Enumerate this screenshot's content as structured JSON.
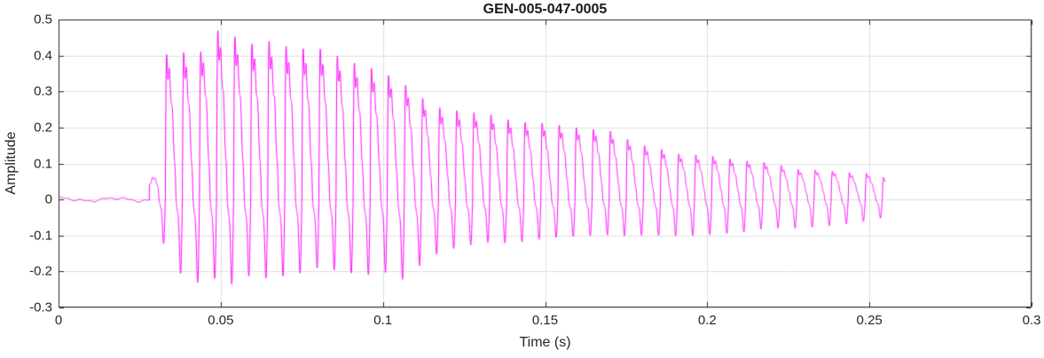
{
  "chart_data": {
    "type": "line",
    "title": "GEN-005-047-0005",
    "xlabel": "Time (s)",
    "ylabel": "Amplitude",
    "xlim": [
      0,
      0.3
    ],
    "ylim": [
      -0.3,
      0.5
    ],
    "xticks": [
      0,
      0.05,
      0.1,
      0.15,
      0.2,
      0.25,
      0.3
    ],
    "xtick_labels": [
      "0",
      "0.05",
      "0.1",
      "0.15",
      "0.2",
      "0.25",
      "0.3"
    ],
    "yticks": [
      -0.3,
      -0.2,
      -0.1,
      0,
      0.1,
      0.2,
      0.3,
      0.4,
      0.5
    ],
    "ytick_labels": [
      "-0.3",
      "-0.2",
      "-0.1",
      "0",
      "0.1",
      "0.2",
      "0.3",
      "0.4",
      "0.5"
    ],
    "grid": true,
    "colors": {
      "line": "#ff00ff",
      "axis": "#262626",
      "grid": "#e0e0e0",
      "background": "#ffffff",
      "title_text": "#1a1a1a",
      "tick_text": "#262626"
    },
    "signal": {
      "description": "Decaying oscillatory burst (pluck/percussive waveform): flat near zero until onset, sharp spiky oscillation peaking near 0.47 around t=0.05 s, decaying to ~0.07 by t=0.255 s where the trace ends",
      "onset_time": 0.028,
      "end_time": 0.255,
      "carrier_freq_hz": 190,
      "pre_onset_noise_amp": 0.008,
      "envelope": [
        [
          0.0,
          0.008,
          -0.008
        ],
        [
          0.027,
          0.012,
          -0.012
        ],
        [
          0.03,
          0.1,
          -0.06
        ],
        [
          0.033,
          0.4,
          -0.14
        ],
        [
          0.038,
          0.41,
          -0.21
        ],
        [
          0.043,
          0.4,
          -0.23
        ],
        [
          0.048,
          0.47,
          -0.22
        ],
        [
          0.053,
          0.46,
          -0.24
        ],
        [
          0.058,
          0.43,
          -0.21
        ],
        [
          0.065,
          0.44,
          -0.22
        ],
        [
          0.072,
          0.42,
          -0.21
        ],
        [
          0.08,
          0.42,
          -0.19
        ],
        [
          0.088,
          0.39,
          -0.2
        ],
        [
          0.095,
          0.37,
          -0.21
        ],
        [
          0.1,
          0.35,
          -0.2
        ],
        [
          0.105,
          0.33,
          -0.23
        ],
        [
          0.11,
          0.3,
          -0.19
        ],
        [
          0.115,
          0.26,
          -0.16
        ],
        [
          0.12,
          0.25,
          -0.14
        ],
        [
          0.13,
          0.24,
          -0.12
        ],
        [
          0.14,
          0.22,
          -0.12
        ],
        [
          0.15,
          0.21,
          -0.11
        ],
        [
          0.16,
          0.2,
          -0.1
        ],
        [
          0.17,
          0.19,
          -0.1
        ],
        [
          0.18,
          0.15,
          -0.1
        ],
        [
          0.19,
          0.13,
          -0.1
        ],
        [
          0.2,
          0.12,
          -0.1
        ],
        [
          0.21,
          0.11,
          -0.09
        ],
        [
          0.22,
          0.1,
          -0.08
        ],
        [
          0.23,
          0.08,
          -0.08
        ],
        [
          0.24,
          0.08,
          -0.07
        ],
        [
          0.25,
          0.07,
          -0.06
        ],
        [
          0.255,
          0.06,
          -0.05
        ]
      ]
    }
  }
}
